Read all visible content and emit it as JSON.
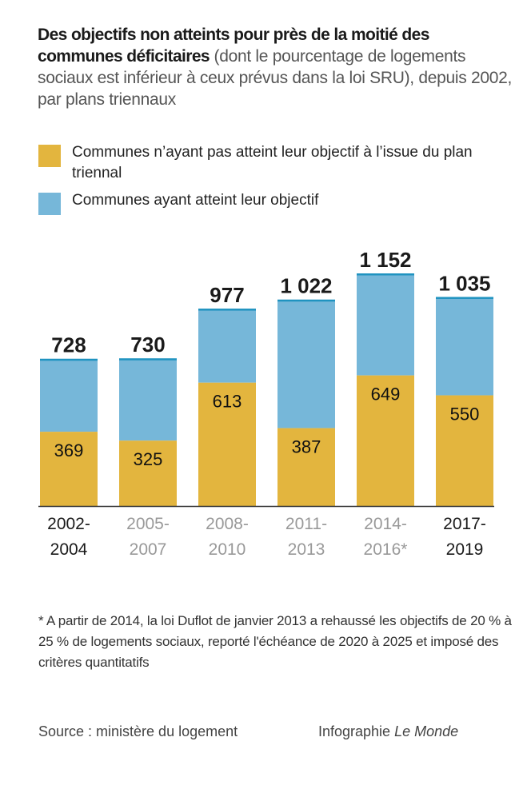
{
  "title": {
    "bold": "Des objectifs non atteints pour près de la moitié des communes déficitaires",
    "sub": " (dont le pourcentage de logements sociaux est inférieur à ceux prévus dans la loi SRU), depuis 2002, par plans triennaux"
  },
  "legend": [
    {
      "label": "Communes n’ayant pas atteint leur objectif à l’issue du plan triennal",
      "color": "#e3b53e"
    },
    {
      "label": "Communes ayant atteint leur objectif",
      "color": "#76b7d9"
    }
  ],
  "footnote": "* A partir de 2014, la loi Duflot de janvier 2013 a rehaussé les objectifs de 20 % à 25 % de logements sociaux, reporté l'échéance de 2020 à 2025 et imposé des critères quantitatifs",
  "source": "Source : ministère du logement",
  "credit": {
    "prefix": "Infographie ",
    "brand": "Le Monde"
  },
  "chart_data": {
    "type": "bar",
    "stacked": true,
    "title": "Des objectifs non atteints pour près de la moitié des communes déficitaires",
    "xlabel": "",
    "ylabel": "",
    "grid": false,
    "legend_position": "top-left",
    "categories": [
      "2002-\n2004",
      "2005-\n2007",
      "2008-\n2010",
      "2011-\n2013",
      "2014-\n2016*",
      "2017-\n2019"
    ],
    "category_highlight": [
      true,
      false,
      false,
      false,
      false,
      true
    ],
    "totals": [
      728,
      730,
      977,
      1022,
      1152,
      1035
    ],
    "total_labels": [
      "728",
      "730",
      "977",
      "1 022",
      "1 152",
      "1 035"
    ],
    "series": [
      {
        "name": "Communes n’ayant pas atteint leur objectif à l’issue du plan triennal",
        "values": [
          369,
          325,
          613,
          387,
          649,
          550
        ],
        "color": "#e3b53e"
      },
      {
        "name": "Communes ayant atteint leur objectif",
        "values": [
          359,
          405,
          364,
          635,
          503,
          485
        ],
        "color": "#76b7d9"
      }
    ],
    "top_line_color": "#1f93c0",
    "ylim": [
      0,
      1152
    ]
  }
}
